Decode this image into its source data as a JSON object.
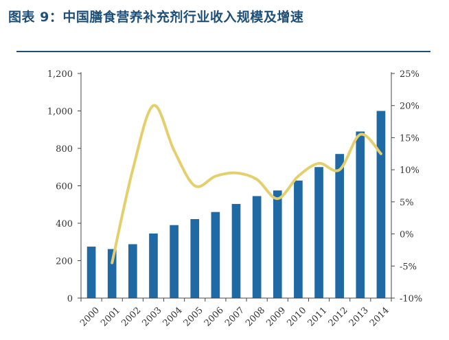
{
  "header": {
    "title": "图表 9：中国膳食营养补充剂行业收入规模及增速"
  },
  "colors": {
    "title": "#1d4f79",
    "bar": "#1f6aa5",
    "line": "#e5cf6c",
    "axis": "#444444"
  },
  "chart_data": {
    "type": "bar",
    "title": "",
    "xlabel": "",
    "ylabel": "",
    "categories": [
      "2000",
      "2001",
      "2002",
      "2003",
      "2004",
      "2005",
      "2006",
      "2007",
      "2008",
      "2009",
      "2010",
      "2011",
      "2012",
      "2013",
      "2014"
    ],
    "series": [
      {
        "type": "bar",
        "axis": "left",
        "values": [
          275,
          262,
          288,
          345,
          390,
          422,
          460,
          503,
          545,
          575,
          628,
          700,
          770,
          890,
          1000
        ]
      },
      {
        "type": "line",
        "axis": "right",
        "smooth": true,
        "unit": "%",
        "values": [
          null,
          -4.5,
          10,
          20,
          13,
          7.5,
          9,
          9.5,
          8.5,
          5.5,
          9,
          11,
          10,
          15.5,
          12.5
        ]
      }
    ],
    "ylim_left": [
      0,
      1200
    ],
    "yticks_left": [
      "0",
      "200",
      "400",
      "600",
      "800",
      "1,000",
      "1,200"
    ],
    "yticks_left_values": [
      0,
      200,
      400,
      600,
      800,
      1000,
      1200
    ],
    "ylim_right": [
      -10,
      25
    ],
    "yticks_right": [
      "-10%",
      "-5%",
      "0%",
      "5%",
      "10%",
      "15%",
      "20%",
      "25%"
    ],
    "yticks_right_values": [
      -10,
      -5,
      0,
      5,
      10,
      15,
      20,
      25
    ],
    "grid": false,
    "legend": "none"
  }
}
